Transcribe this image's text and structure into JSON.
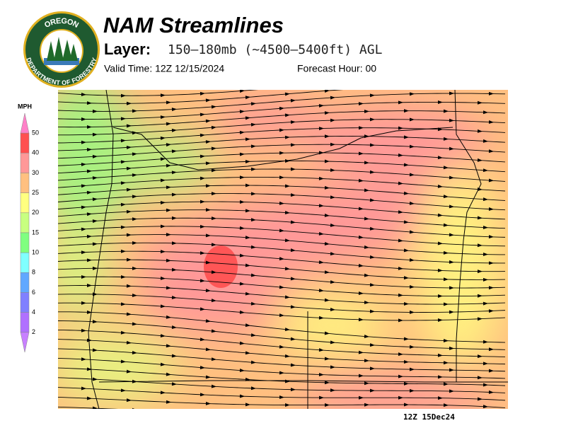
{
  "header": {
    "title": "NAM Streamlines",
    "layer_label": "Layer:",
    "layer_value": "150–180mb (~4500–5400ft) AGL",
    "valid_time": "Valid Time: 12Z 12/15/2024",
    "forecast_hour": "Forecast Hour: 00"
  },
  "logo": {
    "top_text": "OREGON",
    "bottom_text": "DEPARTMENT OF FORESTRY"
  },
  "legend": {
    "unit": "MPH",
    "ticks": [
      50,
      40,
      30,
      25,
      20,
      15,
      10,
      8,
      6,
      4,
      2
    ],
    "colors": [
      "#ff80c8",
      "#ff5050",
      "#ff9898",
      "#ffc080",
      "#ffff80",
      "#c8ff80",
      "#80ff80",
      "#80ffff",
      "#60a8ff",
      "#8080ff",
      "#b070ff",
      "#c880ff"
    ]
  },
  "map": {
    "stamp": "12Z 15Dec24"
  }
}
